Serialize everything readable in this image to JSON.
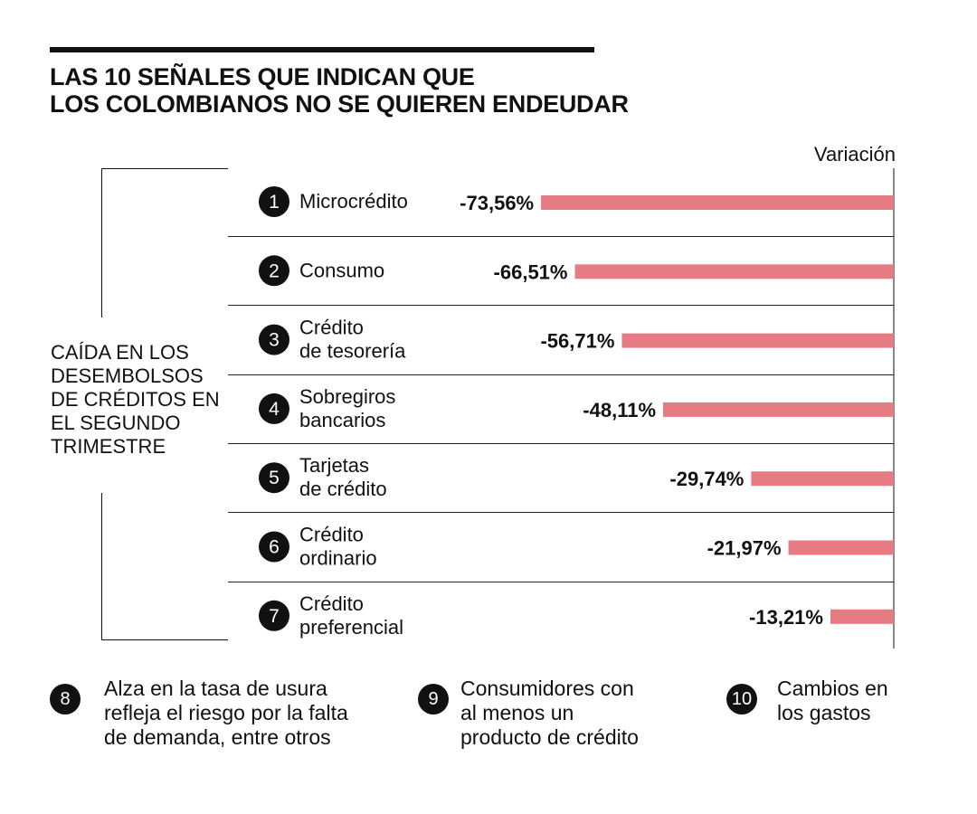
{
  "title_lines": [
    "LAS 10 SEÑALES QUE INDICAN QUE",
    "LOS COLOMBIANOS NO SE QUIEREN ENDEUDAR"
  ],
  "side_label_lines": [
    "CAÍDA EN LOS",
    "DESEMBOLSOS",
    "DE CRÉDITOS EN",
    "EL SEGUNDO",
    "TRIMESTRE"
  ],
  "chart_data": {
    "type": "bar",
    "orientation": "horizontal",
    "title": "LAS 10 SEÑALES QUE INDICAN QUE LOS COLOMBIANOS NO SE QUIEREN ENDEUDAR",
    "xlabel": "Variación",
    "ylabel": "CAÍDA EN LOS DESEMBOLSOS DE CRÉDITOS EN EL SEGUNDO TRIMESTRE",
    "xlim": [
      -100,
      0
    ],
    "color": "#e67b84",
    "categories": [
      {
        "num": "1",
        "lines": [
          "Microcrédito"
        ]
      },
      {
        "num": "2",
        "lines": [
          "Consumo"
        ]
      },
      {
        "num": "3",
        "lines": [
          "Crédito",
          "de tesorería"
        ]
      },
      {
        "num": "4",
        "lines": [
          "Sobregiros",
          "bancarios"
        ]
      },
      {
        "num": "5",
        "lines": [
          "Tarjetas",
          "de crédito"
        ]
      },
      {
        "num": "6",
        "lines": [
          "Crédito",
          "ordinario"
        ]
      },
      {
        "num": "7",
        "lines": [
          "Crédito",
          "preferencial"
        ]
      }
    ],
    "values": [
      -73.56,
      -66.51,
      -56.71,
      -48.11,
      -29.74,
      -21.97,
      -13.21
    ],
    "value_labels": [
      "-73,56%",
      "-66,51%",
      "-56,71%",
      "-48,11%",
      "-29,74%",
      "-21,97%",
      "-13,21%"
    ]
  },
  "footer": [
    {
      "num": "8",
      "lines": [
        "Alza en la tasa de usura",
        "refleja el riesgo por la falta",
        "de demanda, entre otros"
      ]
    },
    {
      "num": "9",
      "lines": [
        "Consumidores con",
        "al menos un",
        "producto de crédito"
      ]
    },
    {
      "num": "10",
      "lines": [
        "Cambios en",
        "los gastos"
      ]
    }
  ]
}
